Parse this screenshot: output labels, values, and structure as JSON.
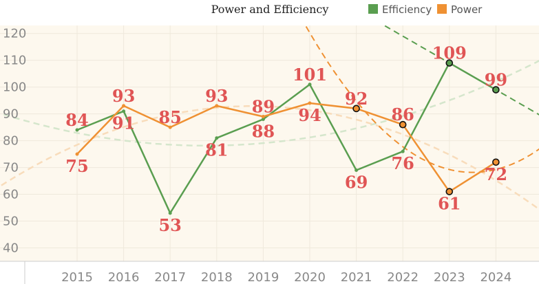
{
  "chart_data": {
    "type": "line",
    "title": "Power and Efficiency",
    "x": [
      "2015",
      "2016",
      "2017",
      "2018",
      "2019",
      "2020",
      "2021",
      "2022",
      "2023",
      "2024"
    ],
    "series": [
      {
        "name": "Efficiency",
        "values": [
          84,
          91,
          53,
          81,
          88,
          101,
          69,
          76,
          109,
          99
        ],
        "color": "#5a9e50"
      },
      {
        "name": "Power",
        "values": [
          75,
          93,
          85,
          93,
          89,
          94,
          92,
          86,
          61,
          72
        ],
        "color": "#ef9133"
      }
    ],
    "highlighted_points": {
      "Efficiency": [
        "2023",
        "2024"
      ],
      "Power": [
        "2021",
        "2022",
        "2023",
        "2024"
      ]
    },
    "yticks": [
      40,
      50,
      60,
      70,
      80,
      90,
      100,
      110,
      120
    ],
    "ylim": [
      35,
      123
    ],
    "grid": true,
    "legend_position": "top-right",
    "trend_lines": "dashed curves",
    "colors": {
      "plot_background": "#fdf8ee",
      "label": "#e05555",
      "grid": "#efe9dc"
    }
  }
}
